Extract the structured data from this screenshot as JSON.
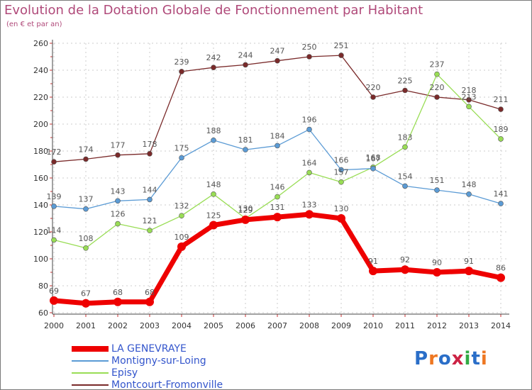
{
  "title": "Evolution de la Dotation Globale de Fonctionnement par Habitant",
  "subtitle": "(en € et par an)",
  "logo_text": "Proxiti",
  "chart_data": {
    "type": "line",
    "title": "Evolution de la Dotation Globale de Fonctionnement par Habitant",
    "subtitle": "(en € et par an)",
    "xlabel": "",
    "ylabel": "",
    "ylim": [
      60,
      260
    ],
    "yticks": [
      60,
      80,
      100,
      120,
      140,
      160,
      180,
      200,
      220,
      240,
      260
    ],
    "x": [
      "2000",
      "2001",
      "2002",
      "2003",
      "2004",
      "2005",
      "2006",
      "2007",
      "2008",
      "2009",
      "2010",
      "2011",
      "2012",
      "2013",
      "2014"
    ],
    "grid": true,
    "legend_position": "bottom-left",
    "series": [
      {
        "name": "LA GENEVRAYE",
        "color": "#ee0000",
        "width": 7,
        "marker": 6,
        "values": [
          69,
          67,
          68,
          68,
          109,
          125,
          129,
          131,
          133,
          130,
          91,
          92,
          90,
          91,
          86
        ],
        "labels": [
          "69",
          "67",
          "68",
          "68",
          "109",
          "125",
          "129",
          "131",
          "133",
          "130",
          "91",
          "92",
          "90",
          "91",
          "86"
        ]
      },
      {
        "name": "Montigny-sur-Loing",
        "color": "#5b9bd5",
        "width": 1.3,
        "marker": 3.5,
        "values": [
          139,
          137,
          143,
          144,
          175,
          188,
          181,
          184,
          196,
          166,
          167,
          154,
          151,
          148,
          141
        ],
        "labels": [
          "139",
          "137",
          "143",
          "144",
          "175",
          "188",
          "181",
          "184",
          "196",
          "166",
          "167",
          "154",
          "151",
          "148",
          "141"
        ]
      },
      {
        "name": "Episy",
        "color": "#99dd55",
        "width": 1.3,
        "marker": 3.5,
        "values": [
          114,
          108,
          126,
          121,
          132,
          148,
          130,
          146,
          164,
          157,
          168,
          183,
          237,
          213,
          189
        ],
        "labels": [
          "114",
          "108",
          "126",
          "121",
          "132",
          "148",
          "130",
          "146",
          "164",
          "157",
          "168",
          "183",
          "237",
          "213",
          "189"
        ]
      },
      {
        "name": "Montcourt-Fromonville",
        "color": "#7a2a2a",
        "width": 1.3,
        "marker": 3.5,
        "values": [
          172,
          174,
          177,
          178,
          239,
          242,
          244,
          247,
          250,
          251,
          220,
          225,
          220,
          218,
          211
        ],
        "labels": [
          "172",
          "174",
          "177",
          "178",
          "239",
          "242",
          "244",
          "247",
          "250",
          "251",
          "220",
          "225",
          "220",
          "218",
          "211"
        ]
      }
    ]
  },
  "legend": [
    {
      "name": "LA GENEVRAYE",
      "color": "#ee0000",
      "thickness": 8
    },
    {
      "name": "Montigny-sur-Loing",
      "color": "#5b9bd5",
      "thickness": 2
    },
    {
      "name": "Episy",
      "color": "#99dd55",
      "thickness": 2
    },
    {
      "name": "Montcourt-Fromonville",
      "color": "#7a2a2a",
      "thickness": 2
    }
  ]
}
